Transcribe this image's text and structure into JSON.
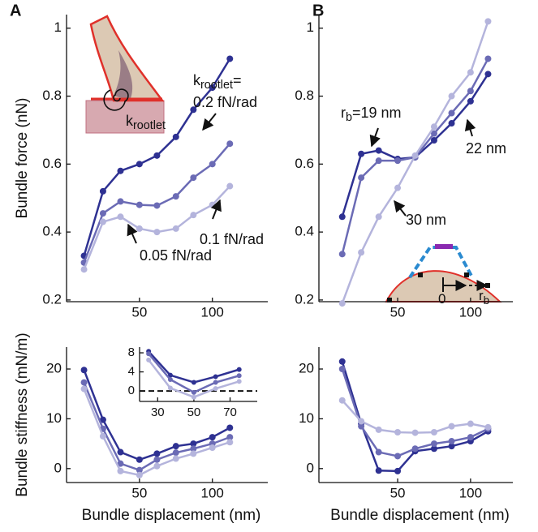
{
  "chart_data": [
    {
      "type": "line",
      "panel_label": "A",
      "ylabel": "Bundle force (nN)",
      "x": [
        12,
        25,
        37,
        50,
        62,
        75,
        87,
        100,
        112
      ],
      "xlim": [
        0,
        138
      ],
      "xticks": [
        50,
        100
      ],
      "ylim": [
        0.195,
        1.04
      ],
      "yticks": [
        0.2,
        0.4,
        0.6,
        0.8,
        1
      ],
      "series": [
        {
          "name": "0.2 fN/rad",
          "color": "#2e3192",
          "values": [
            0.33,
            0.52,
            0.58,
            0.6,
            0.625,
            0.68,
            0.76,
            0.825,
            0.91
          ]
        },
        {
          "name": "0.1 fN/rad",
          "color": "#6b6bb5",
          "values": [
            0.31,
            0.455,
            0.49,
            0.48,
            0.478,
            0.505,
            0.56,
            0.6,
            0.66
          ]
        },
        {
          "name": "0.05 fN/rad",
          "color": "#b4b4dc",
          "values": [
            0.29,
            0.43,
            0.445,
            0.41,
            0.4,
            0.41,
            0.45,
            0.48,
            0.535
          ]
        }
      ],
      "annotations": [
        {
          "text": "k",
          "sub": "rootlet",
          "tail": "="
        }
      ],
      "sketch_labels": [
        {
          "text": "k",
          "sub": "rootlet"
        }
      ]
    },
    {
      "type": "line",
      "panel_label": "B",
      "x": [
        12,
        25,
        37,
        50,
        62,
        75,
        87,
        100,
        112
      ],
      "xlim": [
        -4,
        129
      ],
      "xticks": [
        50,
        100
      ],
      "ylim": [
        0.195,
        1.04
      ],
      "yticks": [
        0.2,
        0.4,
        0.6,
        0.8,
        1
      ],
      "series": [
        {
          "name": "=19 nm",
          "color": "#2e3192",
          "values": [
            0.445,
            0.63,
            0.64,
            0.615,
            0.62,
            0.67,
            0.72,
            0.785,
            0.865
          ]
        },
        {
          "name": "22 nm",
          "color": "#6b6bb5",
          "values": [
            0.335,
            0.56,
            0.61,
            0.61,
            0.62,
            0.69,
            0.75,
            0.815,
            0.91
          ]
        },
        {
          "name": "30 nm",
          "color": "#b4b4dc",
          "values": [
            0.19,
            0.34,
            0.445,
            0.53,
            0.625,
            0.71,
            0.8,
            0.87,
            1.02
          ]
        }
      ],
      "annotations": [
        {
          "text": "r",
          "sub": "b"
        }
      ],
      "sketch_labels": [
        {
          "text": "0"
        },
        {
          "text": "r",
          "sub": "b"
        }
      ]
    },
    {
      "type": "line",
      "ylabel": "Bundle stiffness (mN/m)",
      "xlabel": "Bundle displacement (nm)",
      "x": [
        12,
        25,
        37,
        50,
        62,
        75,
        87,
        100,
        112
      ],
      "xlim": [
        0,
        138
      ],
      "xticks": [
        50,
        100
      ],
      "ylim": [
        -2.8,
        24.4
      ],
      "yticks": [
        0,
        10,
        20
      ],
      "series": [
        {
          "color": "#2e3192",
          "values": [
            19.8,
            9.8,
            3.3,
            1.8,
            3.0,
            4.5,
            5.0,
            6.3,
            8.2
          ]
        },
        {
          "color": "#6b6bb5",
          "values": [
            17.3,
            8.0,
            1.0,
            -0.3,
            1.8,
            3.2,
            4.0,
            5.0,
            6.3
          ]
        },
        {
          "color": "#b4b4dc",
          "values": [
            16.0,
            6.5,
            -0.5,
            -1.3,
            0.5,
            2.0,
            3.0,
            4.2,
            5.3
          ]
        }
      ]
    },
    {
      "type": "line",
      "xlabel": "Bundle displacement (nm)",
      "x": [
        12,
        25,
        37,
        50,
        62,
        75,
        87,
        100,
        112
      ],
      "xlim": [
        -4,
        129
      ],
      "xticks": [
        50,
        100
      ],
      "ylim": [
        -2.8,
        24.4
      ],
      "yticks": [
        0,
        10,
        20
      ],
      "series": [
        {
          "color": "#2e3192",
          "values": [
            21.5,
            9.0,
            -0.4,
            -0.5,
            3.5,
            4.0,
            4.5,
            5.5,
            7.5
          ]
        },
        {
          "color": "#6b6bb5",
          "values": [
            20.0,
            8.5,
            3.3,
            2.5,
            4.0,
            5.0,
            5.5,
            6.3,
            8.0
          ]
        },
        {
          "color": "#b4b4dc",
          "values": [
            13.7,
            9.5,
            7.8,
            7.3,
            7.2,
            7.3,
            8.5,
            9.0,
            8.3
          ]
        }
      ]
    },
    {
      "type": "line",
      "x": [
        25,
        37,
        50,
        62,
        75
      ],
      "xlim": [
        20,
        85
      ],
      "xticks": [
        30,
        50,
        70
      ],
      "ylim": [
        -2.2,
        9.2
      ],
      "yticks": [
        0,
        4,
        8
      ],
      "hlines": [
        0
      ],
      "series": [
        {
          "color": "#2e3192",
          "values": [
            8.3,
            3.3,
            1.8,
            3.0,
            4.5
          ]
        },
        {
          "color": "#6b6bb5",
          "values": [
            7.8,
            2.4,
            -0.3,
            1.8,
            3.2
          ]
        },
        {
          "color": "#b4b4dc",
          "values": [
            6.5,
            0.6,
            -1.3,
            0.5,
            2.0
          ]
        }
      ]
    }
  ]
}
